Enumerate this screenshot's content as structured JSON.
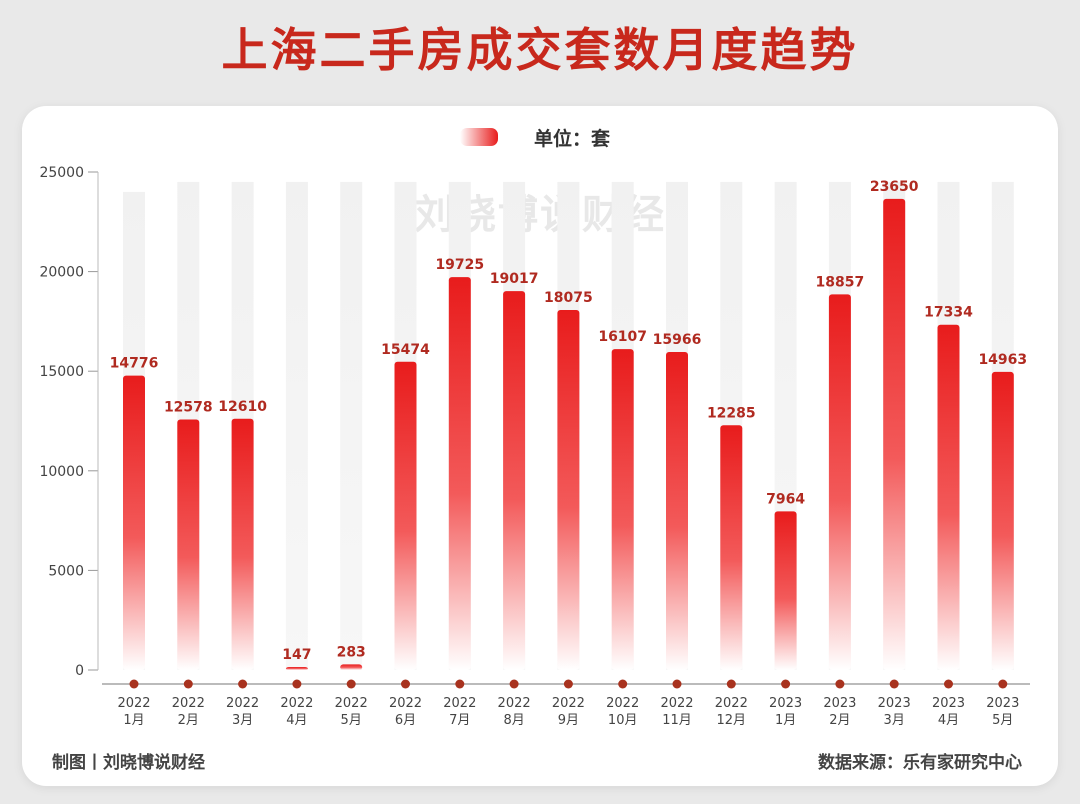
{
  "title": "上海二手房成交套数月度趋势",
  "legend": {
    "label": "单位：套",
    "color": "#e81c1c"
  },
  "watermark": "刘晓博说财经",
  "footer": {
    "left": "制图丨刘晓博说财经",
    "right": "数据来源：乐有家研究中心"
  },
  "colors": {
    "bar_top": "#e81c1c",
    "bar_bottom": "#ffffff",
    "track": "#efefef",
    "dot": "#a8321e",
    "title": "#c8281c"
  },
  "chart_data": {
    "type": "bar",
    "categories": [
      {
        "year": "2022",
        "month": "1月"
      },
      {
        "year": "2022",
        "month": "2月"
      },
      {
        "year": "2022",
        "month": "3月"
      },
      {
        "year": "2022",
        "month": "4月"
      },
      {
        "year": "2022",
        "month": "5月"
      },
      {
        "year": "2022",
        "month": "6月"
      },
      {
        "year": "2022",
        "month": "7月"
      },
      {
        "year": "2022",
        "month": "8月"
      },
      {
        "year": "2022",
        "month": "9月"
      },
      {
        "year": "2022",
        "month": "10月"
      },
      {
        "year": "2022",
        "month": "11月"
      },
      {
        "year": "2022",
        "month": "12月"
      },
      {
        "year": "2023",
        "month": "1月"
      },
      {
        "year": "2023",
        "month": "2月"
      },
      {
        "year": "2023",
        "month": "3月"
      },
      {
        "year": "2023",
        "month": "4月"
      },
      {
        "year": "2023",
        "month": "5月"
      }
    ],
    "values": [
      14776,
      12578,
      12610,
      147,
      283,
      15474,
      19725,
      19017,
      18075,
      16107,
      15966,
      12285,
      7964,
      18857,
      23650,
      17334,
      14963
    ],
    "track_values": [
      24000,
      24500,
      24500,
      24500,
      24500,
      24500,
      24500,
      24500,
      24500,
      24500,
      24500,
      24500,
      24500,
      24500,
      24500,
      24500,
      24500
    ],
    "yticks": [
      0,
      5000,
      10000,
      15000,
      20000,
      25000
    ],
    "ylim": [
      0,
      25000
    ],
    "xlabel": "",
    "ylabel": ""
  }
}
